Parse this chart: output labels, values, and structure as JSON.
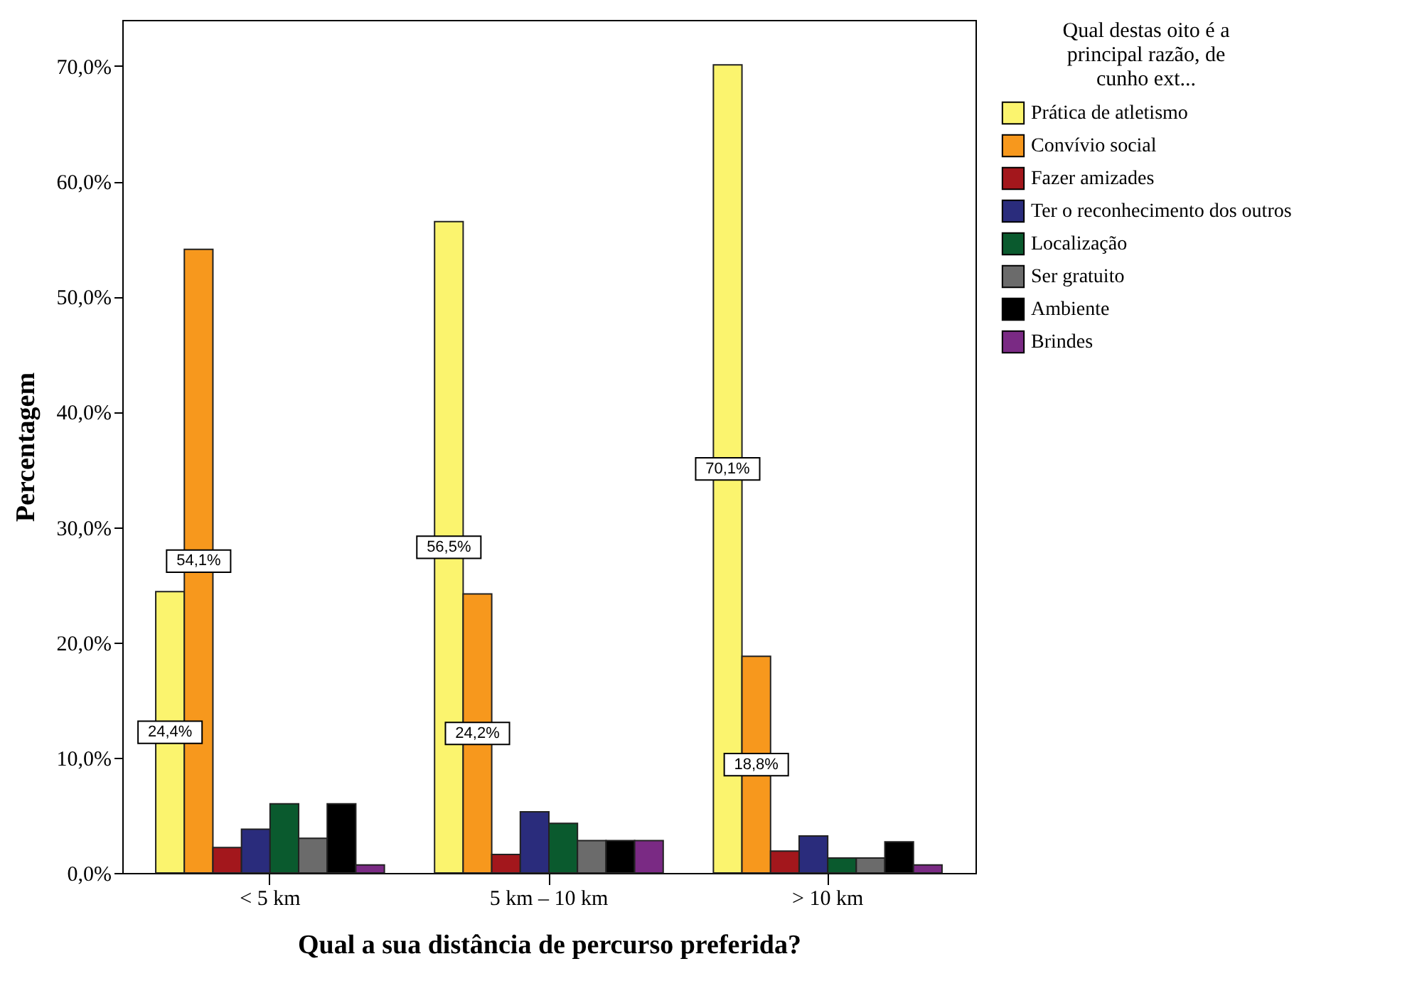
{
  "chart_data": {
    "type": "bar",
    "xlabel": "Qual a sua distância de percurso preferida?",
    "ylabel": "Percentagem",
    "legend_title": "Qual destas oito é a principal razão, de cunho ext...",
    "categories": [
      "< 5 km",
      "5 km – 10 km",
      "> 10 km"
    ],
    "series": [
      {
        "name": "Prática de atletismo",
        "color": "#fbf46e",
        "values": [
          24.4,
          56.5,
          70.1
        ],
        "value_labels": [
          "24,4%",
          "56,5%",
          "70,1%"
        ]
      },
      {
        "name": "Convívio social",
        "color": "#f7981d",
        "values": [
          54.1,
          24.2,
          18.8
        ],
        "value_labels": [
          "54,1%",
          "24,2%",
          "18,8%"
        ]
      },
      {
        "name": "Fazer amizades",
        "color": "#a3171c",
        "values": [
          2.2,
          1.6,
          1.9
        ]
      },
      {
        "name": "Ter o reconhecimento dos outros",
        "color": "#2a2c7c",
        "values": [
          3.8,
          5.3,
          3.2
        ]
      },
      {
        "name": "Localização",
        "color": "#0a5a2e",
        "values": [
          6.0,
          4.3,
          1.3
        ]
      },
      {
        "name": "Ser gratuito",
        "color": "#6b6b6b",
        "values": [
          3.0,
          2.8,
          1.3
        ]
      },
      {
        "name": "Ambiente",
        "color": "#000000",
        "values": [
          6.0,
          2.8,
          2.7
        ]
      },
      {
        "name": "Brindes",
        "color": "#7a2a84",
        "values": [
          0.7,
          2.8,
          0.7
        ]
      }
    ],
    "ylim": [
      0,
      74
    ],
    "yticks": [
      {
        "value": 0,
        "label": "0,0%"
      },
      {
        "value": 10,
        "label": "10,0%"
      },
      {
        "value": 20,
        "label": "20,0%"
      },
      {
        "value": 30,
        "label": "30,0%"
      },
      {
        "value": 40,
        "label": "40,0%"
      },
      {
        "value": 50,
        "label": "50,0%"
      },
      {
        "value": 60,
        "label": "60,0%"
      },
      {
        "value": 70,
        "label": "70,0%"
      }
    ],
    "legend": "top right",
    "grid": false
  }
}
